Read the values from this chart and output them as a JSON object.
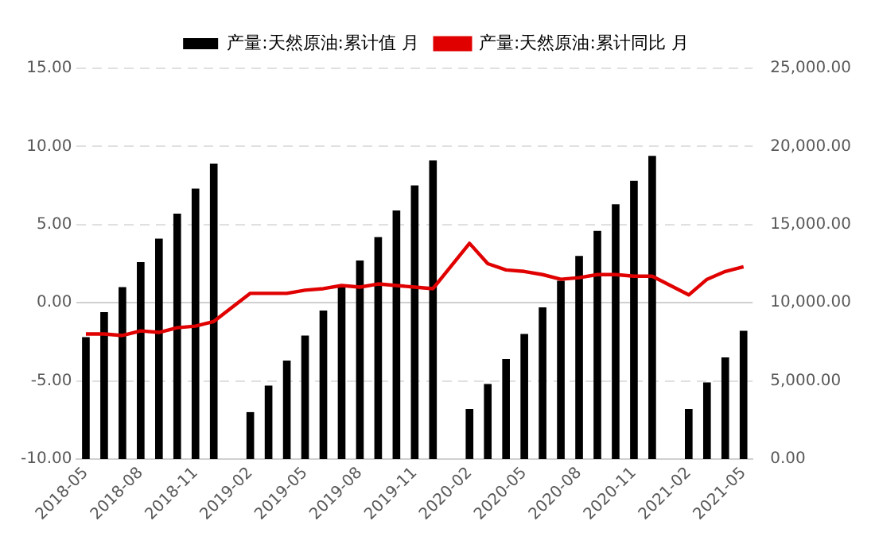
{
  "chart_data": {
    "type": "bar",
    "categories": [
      "2018-05",
      null,
      null,
      "2018-08",
      null,
      null,
      "2018-11",
      null,
      null,
      "2019-02",
      null,
      null,
      "2019-05",
      null,
      null,
      "2019-08",
      null,
      null,
      "2019-11",
      null,
      null,
      "2020-02",
      null,
      null,
      "2020-05",
      null,
      null,
      "2020-08",
      null,
      null,
      "2020-11",
      null,
      null,
      "2021-02",
      null,
      null,
      "2021-05"
    ],
    "series": [
      {
        "name": "产量:天然原油:累计值 月",
        "axis": "y2",
        "color": "#000000",
        "values": [
          7800,
          9400,
          11000,
          12600,
          14100,
          15700,
          17300,
          18900,
          null,
          3000,
          4700,
          6300,
          7900,
          9500,
          11000,
          12700,
          14200,
          15900,
          17500,
          19100,
          null,
          3200,
          4800,
          6400,
          8000,
          9700,
          11400,
          13000,
          14600,
          16300,
          17800,
          19400,
          null,
          3200,
          4900,
          6500,
          8200
        ]
      },
      {
        "name": "产量:天然原油:累计同比 月",
        "type": "line",
        "axis": "y",
        "color": "#e00000",
        "values": [
          -2.0,
          -2.0,
          -2.1,
          -1.8,
          -1.9,
          -1.6,
          -1.5,
          -1.2,
          null,
          0.6,
          0.6,
          0.6,
          0.8,
          0.9,
          1.1,
          1.0,
          1.2,
          1.1,
          1.0,
          0.9,
          null,
          3.8,
          2.5,
          2.1,
          2.0,
          1.8,
          1.5,
          1.6,
          1.8,
          1.8,
          1.7,
          1.7,
          null,
          0.5,
          1.5,
          2.0,
          2.3
        ]
      }
    ],
    "ylim": [
      -10,
      15
    ],
    "yticks": [
      {
        "value": -10,
        "label": "-10.00"
      },
      {
        "value": -5,
        "label": "-5.00"
      },
      {
        "value": 0,
        "label": "0.00"
      },
      {
        "value": 5,
        "label": "5.00"
      },
      {
        "value": 10,
        "label": "10.00"
      },
      {
        "value": 15,
        "label": "15.00"
      }
    ],
    "y2lim": [
      0,
      25000
    ],
    "y2ticks": [
      {
        "value": 0,
        "label": "0.00"
      },
      {
        "value": 5000,
        "label": "5,000.00"
      },
      {
        "value": 10000,
        "label": "10,000.00"
      },
      {
        "value": 15000,
        "label": "15,000.00"
      },
      {
        "value": 20000,
        "label": "20,000.00"
      },
      {
        "value": 25000,
        "label": "25,000.00"
      }
    ],
    "grid": "y",
    "legend": "top",
    "line_style": "solid",
    "marker": "none"
  }
}
